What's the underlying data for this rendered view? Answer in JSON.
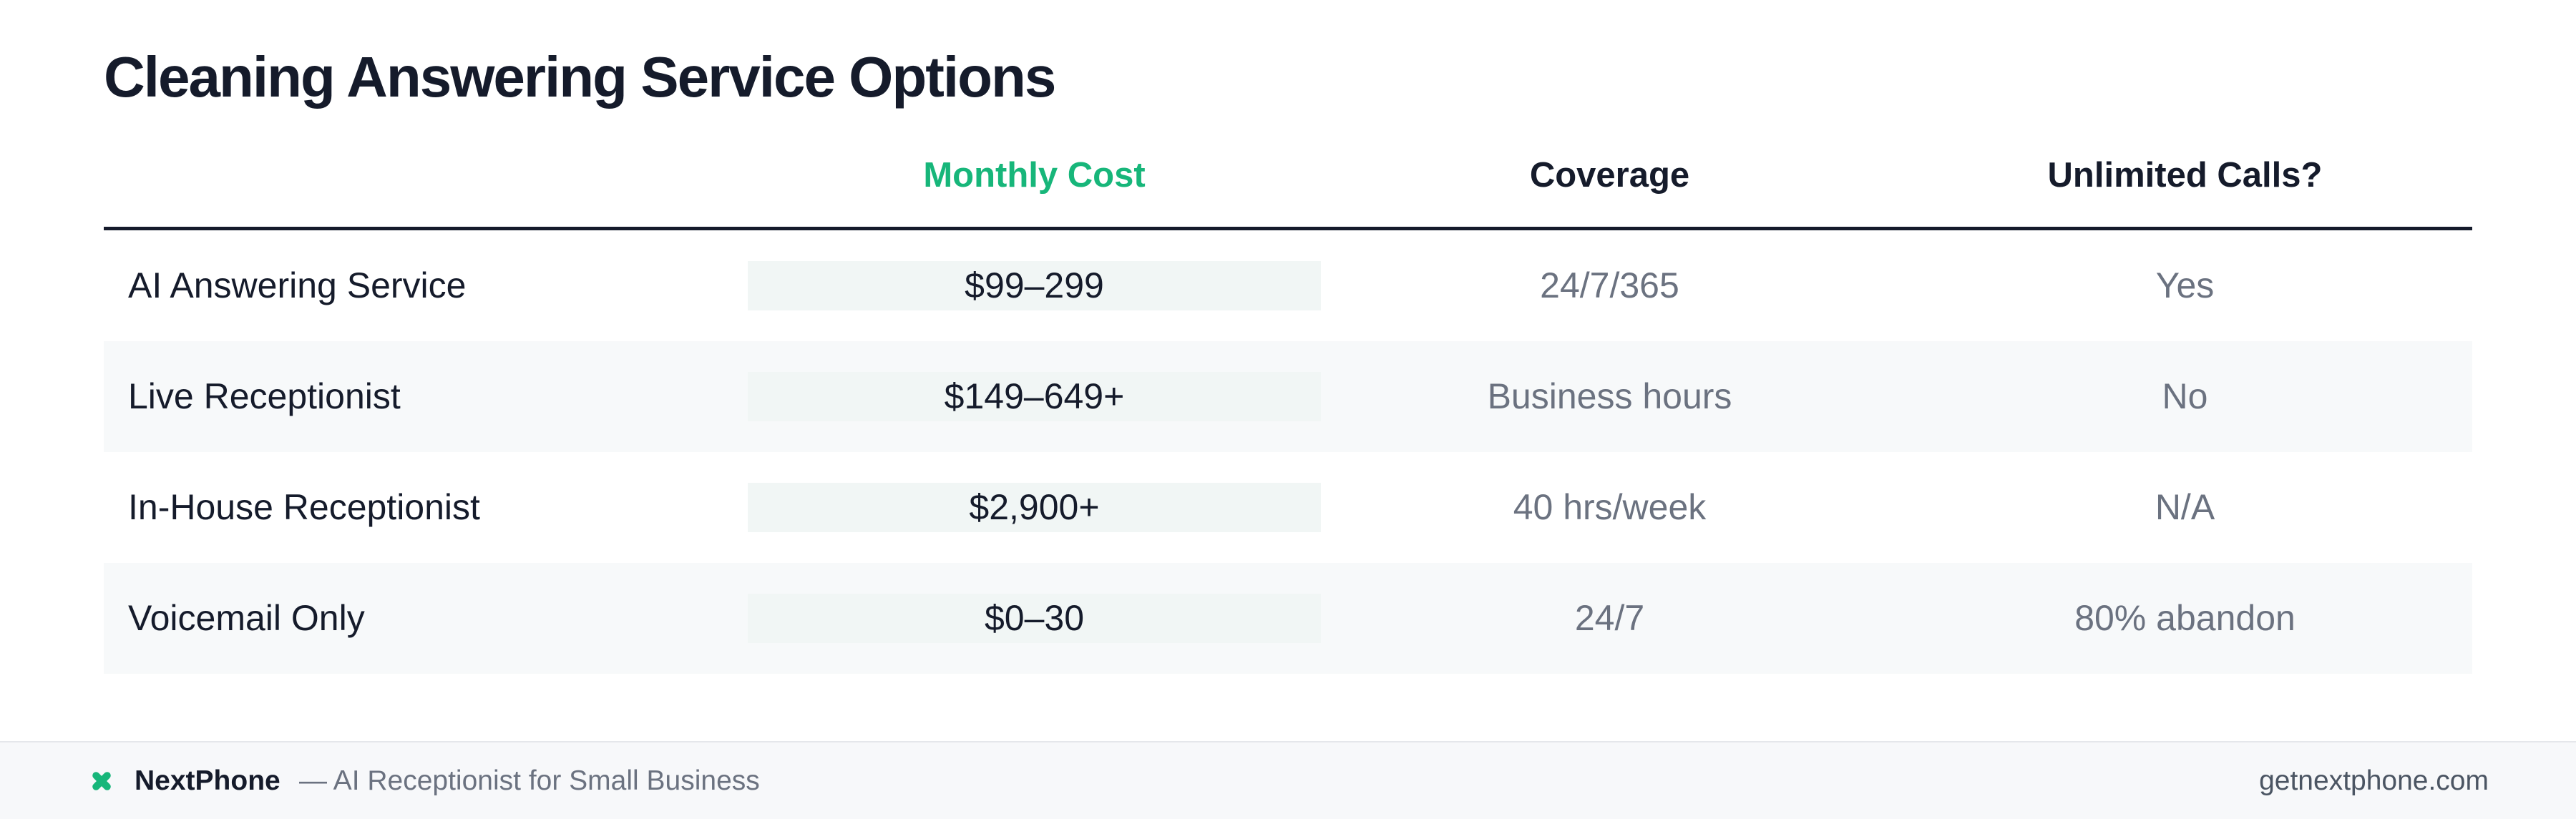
{
  "header": {
    "title": "Cleaning Answering Service Options"
  },
  "table": {
    "columns": [
      "Monthly Cost",
      "Coverage",
      "Unlimited Calls?"
    ],
    "rows": [
      [
        "AI Answering Service",
        "$99–299",
        "24/7/365",
        "Yes"
      ],
      [
        "Live Receptionist",
        "$149–649+",
        "Business hours",
        "No"
      ],
      [
        "In-House Receptionist",
        "$2,900+",
        "40 hrs/week",
        "N/A"
      ],
      [
        "Voicemail Only",
        "$0–30",
        "24/7",
        "80% abandon"
      ]
    ]
  },
  "footer": {
    "brand": "NextPhone",
    "tagline": "— AI Receptionist for Small Business",
    "url": "getnextphone.com"
  }
}
